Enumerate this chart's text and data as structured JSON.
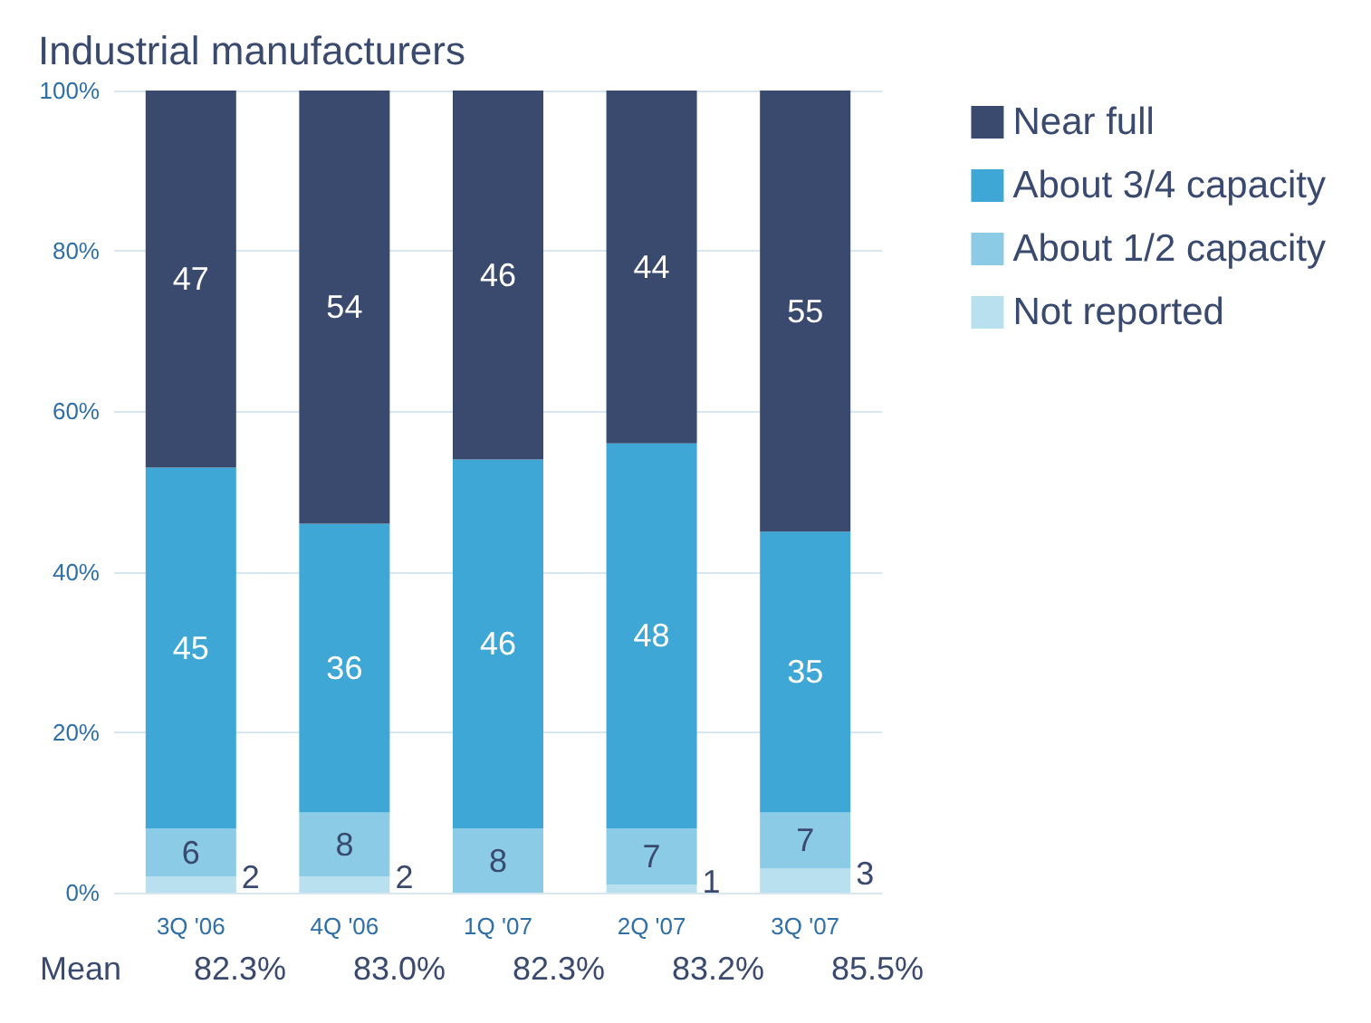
{
  "chart_data": {
    "type": "bar",
    "title": "Industrial manufacturers",
    "stacked": true,
    "categories": [
      "3Q '06",
      "4Q '06",
      "1Q '07",
      "2Q '07",
      "3Q '07"
    ],
    "series": [
      {
        "name": "Not reported",
        "color": "#b8e0ef",
        "values": [
          2,
          2,
          0,
          1,
          3
        ],
        "value_labels": [
          "2",
          "2",
          null,
          "1",
          "3"
        ]
      },
      {
        "name": "About 1/2 capacity",
        "color": "#8ccbe6",
        "values": [
          6,
          8,
          8,
          7,
          7
        ],
        "value_labels": [
          "6",
          "8",
          "8",
          "7",
          "7"
        ]
      },
      {
        "name": "About 3/4 capacity",
        "color": "#3fa7d6",
        "values": [
          45,
          36,
          46,
          48,
          35
        ],
        "value_labels": [
          "45",
          "36",
          "46",
          "48",
          "35"
        ]
      },
      {
        "name": "Near full",
        "color": "#3a4a6e",
        "values": [
          47,
          54,
          46,
          44,
          55
        ],
        "value_labels": [
          "47",
          "54",
          "46",
          "44",
          "55"
        ]
      }
    ],
    "ylim": [
      0,
      100
    ],
    "yticks": [
      {
        "value": 0,
        "label": "0%"
      },
      {
        "value": 20,
        "label": "20%"
      },
      {
        "value": 40,
        "label": "40%"
      },
      {
        "value": 60,
        "label": "60%"
      },
      {
        "value": 80,
        "label": "80%"
      },
      {
        "value": 100,
        "label": "100%"
      }
    ],
    "grid": "y",
    "legend": "top right",
    "annotations": [
      "Mean",
      "82.3%",
      "83.0%",
      "82.3%",
      "83.2%",
      "85.5%"
    ]
  }
}
